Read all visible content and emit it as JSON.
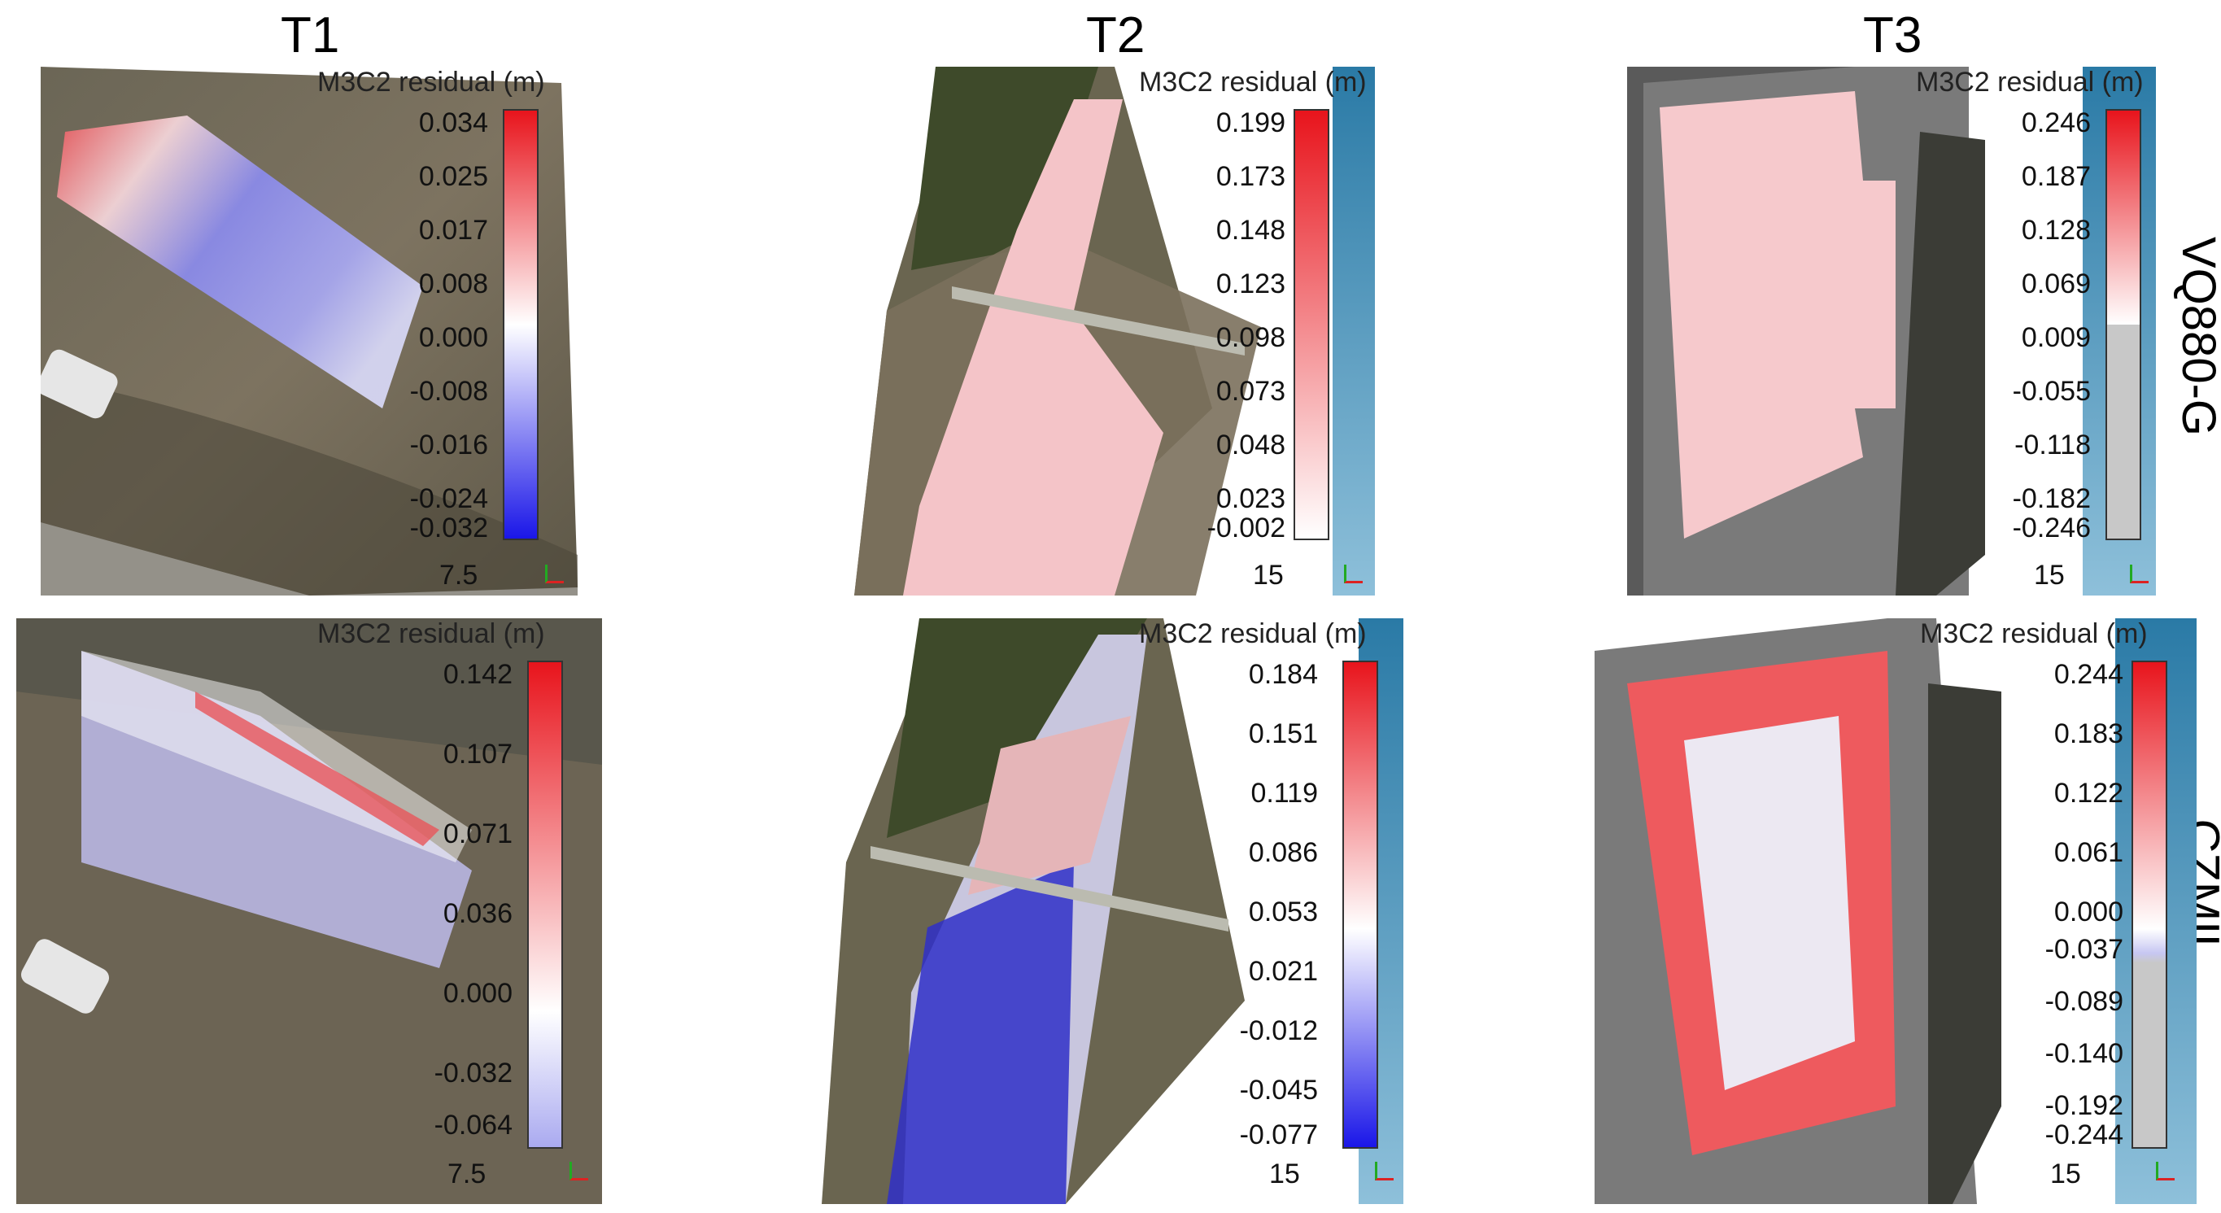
{
  "columns": [
    "T1",
    "T2",
    "T3"
  ],
  "rows": [
    "VQ880-G",
    "CZMIL"
  ],
  "legend_title": "M3C2 residual (m)",
  "panels": [
    {
      "id": "t1-vq",
      "scale": "7.5",
      "ticks": [
        "0.034",
        "0.025",
        "0.017",
        "0.008",
        "0.000",
        "-0.008",
        "-0.016",
        "-0.024",
        "-0.032"
      ]
    },
    {
      "id": "t2-vq",
      "scale": "15",
      "ticks": [
        "0.199",
        "0.173",
        "0.148",
        "0.123",
        "0.098",
        "0.073",
        "0.048",
        "0.023",
        "-0.002"
      ]
    },
    {
      "id": "t3-vq",
      "scale": "15",
      "ticks": [
        "0.246",
        "0.187",
        "0.128",
        "0.069",
        "0.009",
        "-0.055",
        "-0.118",
        "-0.182",
        "-0.246"
      ]
    },
    {
      "id": "t1-cz",
      "scale": "7.5",
      "ticks": [
        "0.142",
        "0.107",
        "0.071",
        "0.036",
        "0.000",
        "-0.032",
        "-0.064"
      ]
    },
    {
      "id": "t2-cz",
      "scale": "15",
      "ticks": [
        "0.184",
        "0.151",
        "0.119",
        "0.086",
        "0.053",
        "0.021",
        "-0.012",
        "-0.045",
        "-0.077"
      ]
    },
    {
      "id": "t3-cz",
      "scale": "15",
      "ticks": [
        "0.244",
        "0.183",
        "0.122",
        "0.061",
        "0.000",
        "-0.037",
        "-0.089",
        "-0.140",
        "-0.192",
        "-0.244"
      ]
    }
  ],
  "colors": {
    "red": "#e8141c",
    "blue": "#1a16e8",
    "white": "#ffffff",
    "gray": "#c8c8c8",
    "strip": "#2a7aa6"
  }
}
